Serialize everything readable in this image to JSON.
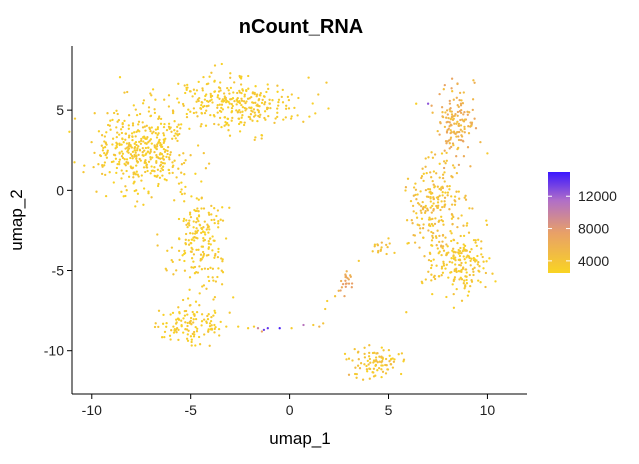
{
  "chart_data": {
    "type": "scatter",
    "title": "nCount_RNA",
    "xlabel": "umap_1",
    "ylabel": "umap_2",
    "xlim": [
      -11,
      12
    ],
    "ylim": [
      -12.7,
      9
    ],
    "x_ticks": [
      -10,
      -5,
      0,
      5,
      10
    ],
    "y_ticks": [
      5,
      0,
      -5,
      -10
    ],
    "x_tick_labels": [
      "-10",
      "-5",
      "0",
      "5",
      "10"
    ],
    "y_tick_labels": [
      "5",
      "0",
      "-5",
      "-10"
    ],
    "grid": false,
    "legend": {
      "placement": "right",
      "type": "colorbar",
      "min": 2500,
      "max": 15000,
      "ticks": [
        12000,
        8000,
        4000
      ],
      "tick_labels": [
        "12000",
        "8000",
        "4000"
      ],
      "colors": [
        "#f9d423",
        "#e8a068",
        "#b06ec8",
        "#3a17ff"
      ]
    },
    "clusters": [
      {
        "cx": -7.4,
        "cy": 2.6,
        "sx": 1.6,
        "sy": 1.7,
        "n": 420,
        "value_range": [
          2500,
          4200
        ]
      },
      {
        "cx": -2.8,
        "cy": 5.4,
        "sx": 2.0,
        "sy": 1.1,
        "n": 300,
        "value_range": [
          2500,
          4200
        ]
      },
      {
        "cx": -4.6,
        "cy": -3.0,
        "sx": 1.0,
        "sy": 2.0,
        "n": 190,
        "value_range": [
          2500,
          4200
        ]
      },
      {
        "cx": -4.9,
        "cy": -8.3,
        "sx": 1.1,
        "sy": 0.9,
        "n": 120,
        "value_range": [
          2500,
          4200
        ]
      },
      {
        "cx": 8.4,
        "cy": 4.2,
        "sx": 0.7,
        "sy": 1.4,
        "n": 140,
        "value_range": [
          4000,
          7200
        ]
      },
      {
        "cx": 7.3,
        "cy": -1.0,
        "sx": 0.9,
        "sy": 2.1,
        "n": 210,
        "value_range": [
          3000,
          5600
        ]
      },
      {
        "cx": 8.6,
        "cy": -4.6,
        "sx": 1.0,
        "sy": 1.3,
        "n": 180,
        "value_range": [
          2500,
          4500
        ]
      },
      {
        "cx": 4.3,
        "cy": -10.7,
        "sx": 1.0,
        "sy": 0.6,
        "n": 90,
        "value_range": [
          2500,
          5000
        ]
      },
      {
        "cx": 2.9,
        "cy": -5.6,
        "sx": 0.25,
        "sy": 0.5,
        "n": 22,
        "value_range": [
          5500,
          7800
        ]
      },
      {
        "cx": 4.6,
        "cy": -3.6,
        "sx": 0.6,
        "sy": 0.6,
        "n": 14,
        "value_range": [
          3500,
          5500
        ]
      }
    ],
    "points": [
      {
        "x": -1.6,
        "y": -8.6,
        "value": 9800
      },
      {
        "x": -1.3,
        "y": -8.7,
        "value": 13500
      },
      {
        "x": -1.1,
        "y": -8.6,
        "value": 13800
      },
      {
        "x": -1.4,
        "y": -8.8,
        "value": 7200
      },
      {
        "x": -0.5,
        "y": -8.6,
        "value": 14500
      },
      {
        "x": 0.7,
        "y": -8.4,
        "value": 11000
      },
      {
        "x": 1.5,
        "y": -8.5,
        "value": 5600
      },
      {
        "x": 7.0,
        "y": 5.4,
        "value": 12500
      },
      {
        "x": 6.4,
        "y": 5.4,
        "value": 3000
      },
      {
        "x": -3.8,
        "y": -8.4,
        "value": 3000
      },
      {
        "x": -3.2,
        "y": -8.5,
        "value": 3100
      },
      {
        "x": -2.6,
        "y": -8.5,
        "value": 3000
      },
      {
        "x": -2.1,
        "y": -8.6,
        "value": 3200
      },
      {
        "x": -1.8,
        "y": -8.5,
        "value": 3400
      },
      {
        "x": 0.1,
        "y": -8.6,
        "value": 3300
      },
      {
        "x": 1.2,
        "y": -8.4,
        "value": 3600
      },
      {
        "x": 1.7,
        "y": -8.3,
        "value": 4200
      },
      {
        "x": 1.8,
        "y": -7.4,
        "value": 3500
      },
      {
        "x": 2.3,
        "y": -6.6,
        "value": 4100
      },
      {
        "x": 1.9,
        "y": -6.9,
        "value": 3200
      },
      {
        "x": 3.5,
        "y": -4.4,
        "value": 3600
      },
      {
        "x": 4.2,
        "y": -3.8,
        "value": 3900
      },
      {
        "x": 5.0,
        "y": -3.0,
        "value": 3700
      },
      {
        "x": 3.0,
        "y": -10.5,
        "value": 3600
      },
      {
        "x": 3.0,
        "y": -11.5,
        "value": 5800
      },
      {
        "x": 2.8,
        "y": -10.2,
        "value": 3100
      },
      {
        "x": -8.9,
        "y": 1.8,
        "value": 3100
      },
      {
        "x": -7.8,
        "y": -1.0,
        "value": 3000
      },
      {
        "x": -3.0,
        "y": 7.3,
        "value": 3300
      },
      {
        "x": 1.3,
        "y": 4.8,
        "value": 3200
      },
      {
        "x": 1.0,
        "y": 4.6,
        "value": 3000
      },
      {
        "x": 5.9,
        "y": -7.6,
        "value": 3400
      },
      {
        "x": 10.0,
        "y": 2.3,
        "value": 3500
      }
    ]
  }
}
